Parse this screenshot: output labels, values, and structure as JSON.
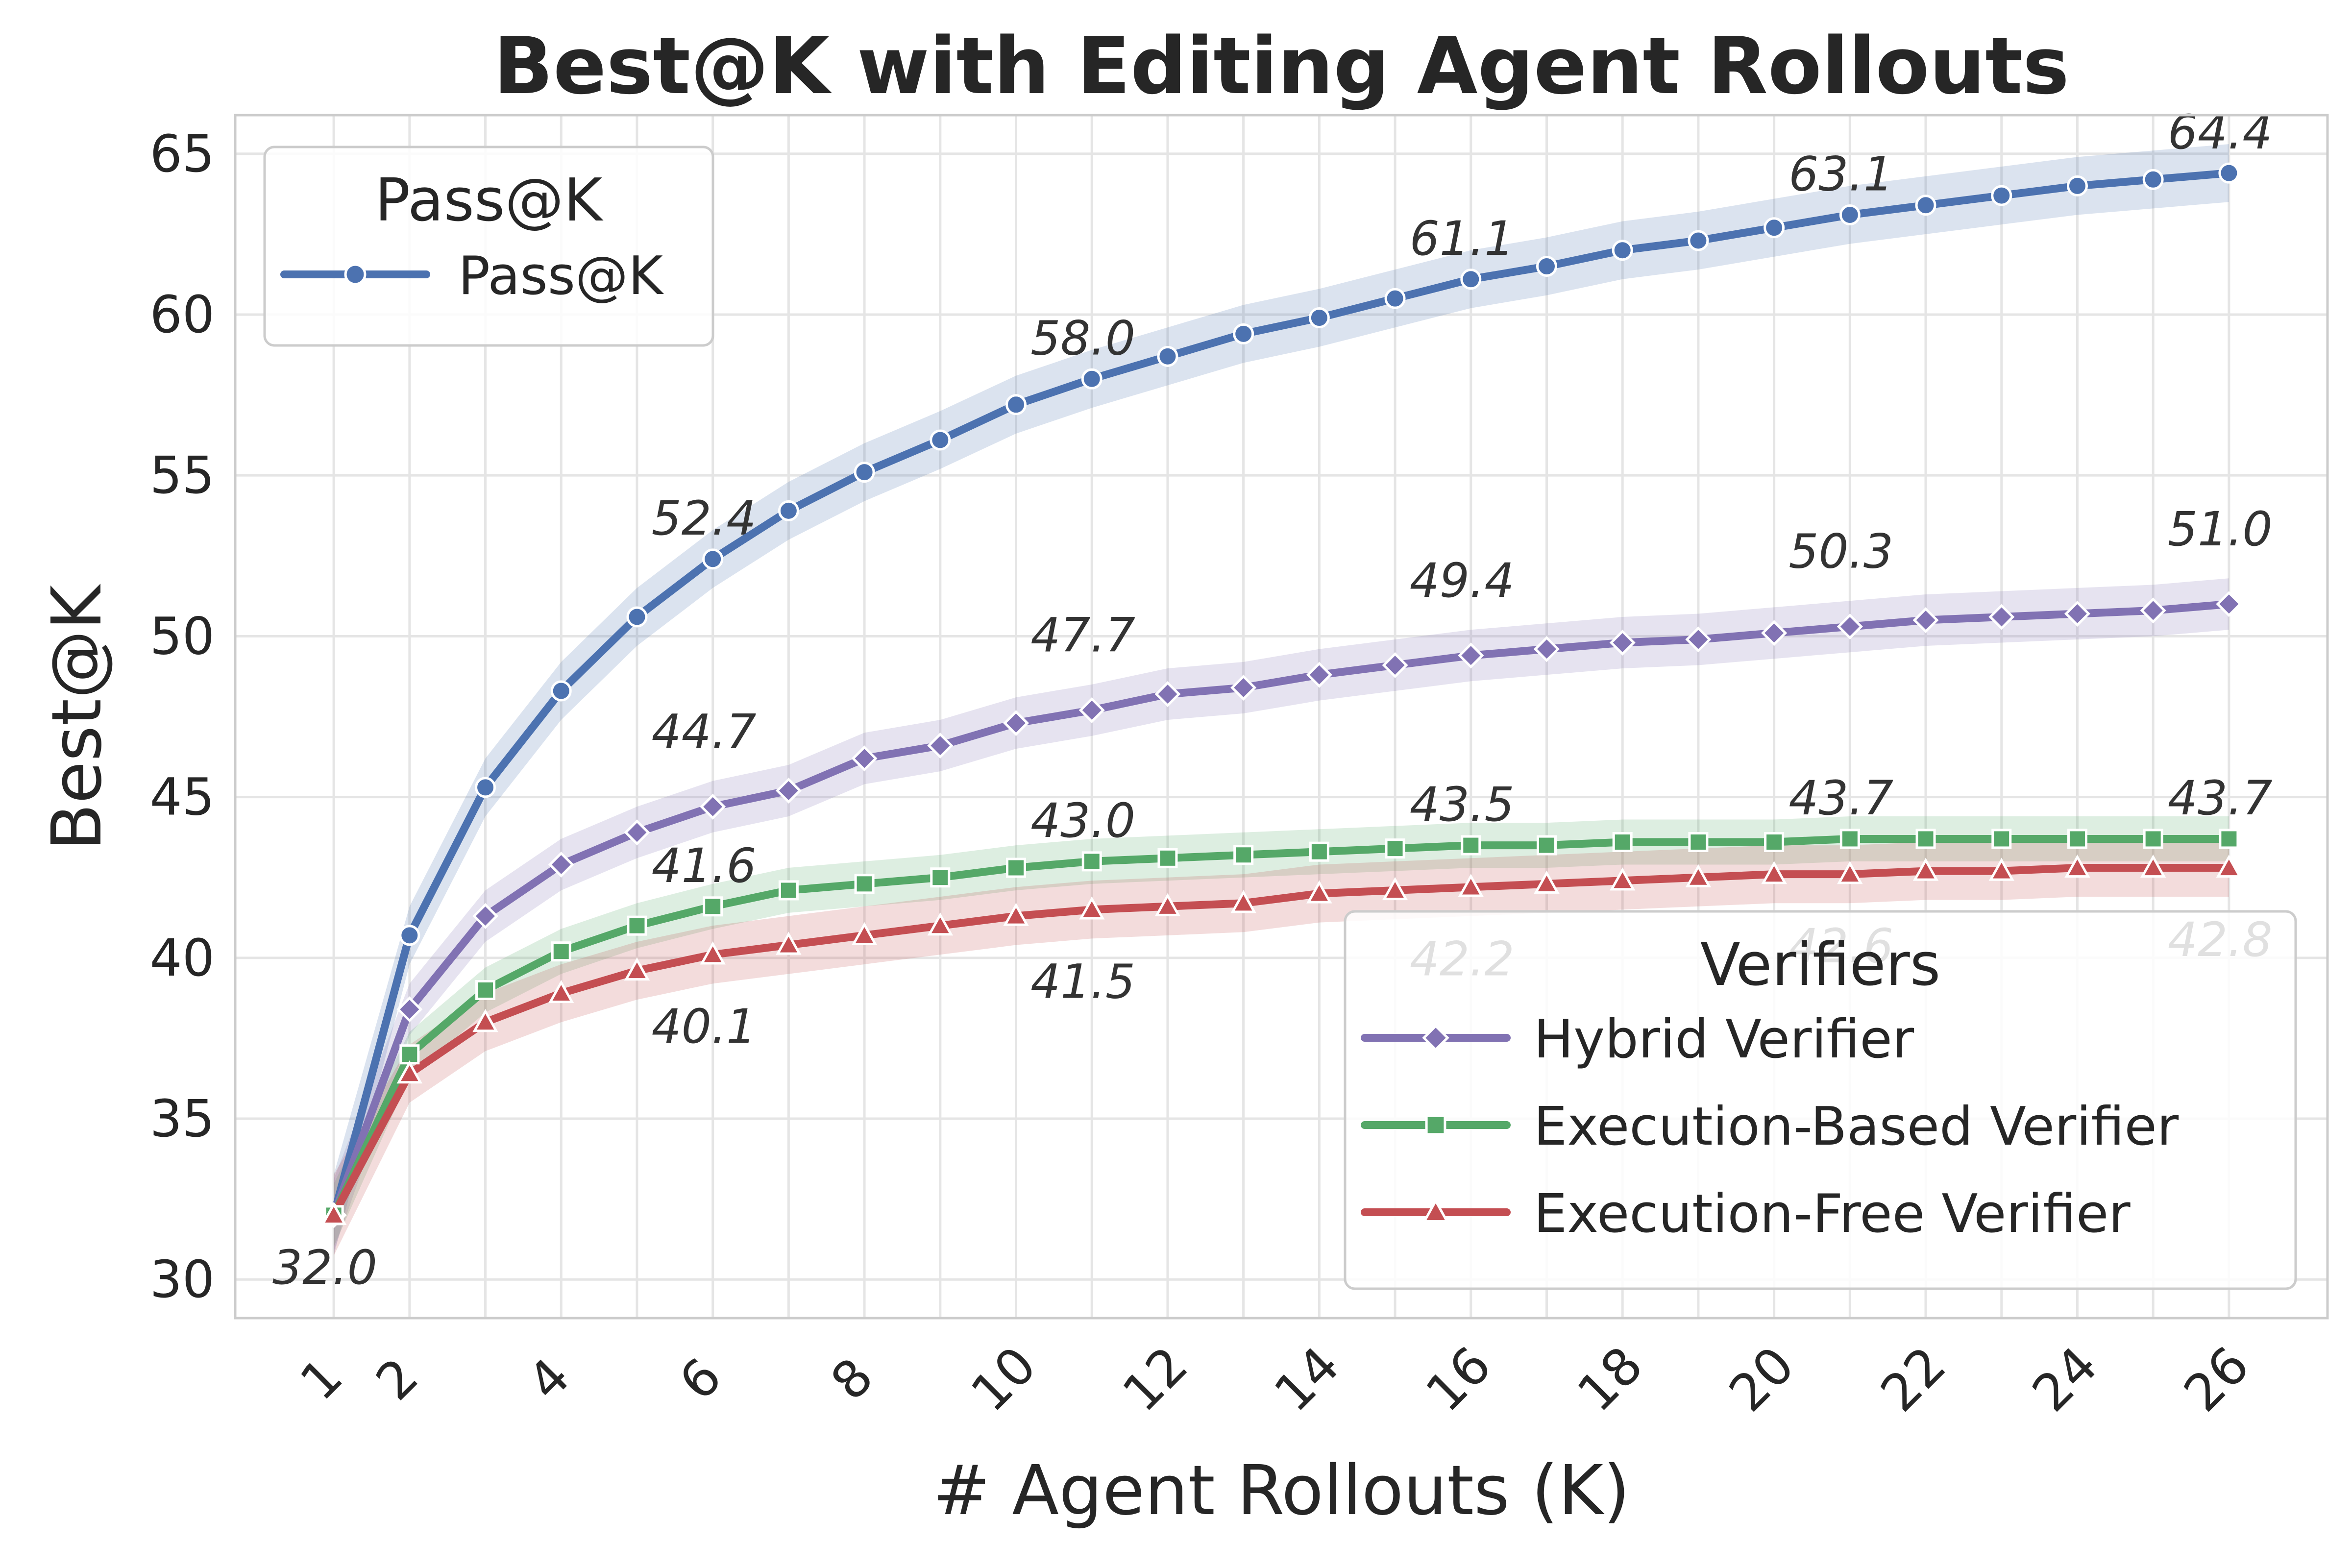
{
  "chart_data": {
    "type": "line",
    "title": "Best@K with Editing Agent Rollouts",
    "xlabel": "# Agent Rollouts (K)",
    "ylabel": "Best@K",
    "xlim": [
      -0.3,
      27.3
    ],
    "ylim": [
      28.8,
      66.2
    ],
    "x_ticks": [
      1,
      2,
      4,
      6,
      8,
      10,
      12,
      14,
      16,
      18,
      20,
      22,
      24,
      26
    ],
    "y_ticks": [
      30,
      35,
      40,
      45,
      50,
      55,
      60,
      65
    ],
    "grid": true,
    "x": [
      1,
      2,
      3,
      4,
      5,
      6,
      7,
      8,
      9,
      10,
      11,
      12,
      13,
      14,
      15,
      16,
      17,
      18,
      19,
      20,
      21,
      22,
      23,
      24,
      25,
      26
    ],
    "series": [
      {
        "name": "Pass@K",
        "color": "#4c72b0",
        "marker": "circle",
        "values": [
          32.0,
          40.7,
          45.3,
          48.3,
          50.6,
          52.4,
          53.9,
          55.1,
          56.1,
          57.2,
          58.0,
          58.7,
          59.4,
          59.9,
          60.5,
          61.1,
          61.5,
          62.0,
          62.3,
          62.7,
          63.1,
          63.4,
          63.7,
          64.0,
          64.2,
          64.4
        ],
        "band": 0.9
      },
      {
        "name": "Hybrid Verifier",
        "color": "#8172b3",
        "marker": "diamond",
        "values": [
          32.0,
          38.4,
          41.3,
          42.9,
          43.9,
          44.7,
          45.2,
          46.2,
          46.6,
          47.3,
          47.7,
          48.2,
          48.4,
          48.8,
          49.1,
          49.4,
          49.6,
          49.8,
          49.9,
          50.1,
          50.3,
          50.5,
          50.6,
          50.7,
          50.8,
          51.0
        ],
        "band": 0.8
      },
      {
        "name": "Execution-Based Verifier",
        "color": "#55a868",
        "marker": "square",
        "values": [
          32.0,
          37.0,
          39.0,
          40.2,
          41.0,
          41.6,
          42.1,
          42.3,
          42.5,
          42.8,
          43.0,
          43.1,
          43.2,
          43.3,
          43.4,
          43.5,
          43.5,
          43.6,
          43.6,
          43.6,
          43.7,
          43.7,
          43.7,
          43.7,
          43.7,
          43.7
        ],
        "band": 0.7
      },
      {
        "name": "Execution-Free Verifier",
        "color": "#c44e52",
        "marker": "triangle",
        "values": [
          32.0,
          36.4,
          38.0,
          38.9,
          39.6,
          40.1,
          40.4,
          40.7,
          41.0,
          41.3,
          41.5,
          41.6,
          41.7,
          42.0,
          42.1,
          42.2,
          42.3,
          42.4,
          42.5,
          42.6,
          42.6,
          42.7,
          42.7,
          42.8,
          42.8,
          42.8
        ],
        "band": 0.9
      }
    ],
    "annotations": [
      {
        "text": "32.0",
        "x": 1,
        "y": 32.0,
        "series": "Pass@K"
      },
      {
        "text": "52.4",
        "x": 6,
        "y": 52.4,
        "series": "Pass@K"
      },
      {
        "text": "58.0",
        "x": 11,
        "y": 58.0,
        "series": "Pass@K"
      },
      {
        "text": "61.1",
        "x": 16,
        "y": 61.1,
        "series": "Pass@K"
      },
      {
        "text": "63.1",
        "x": 21,
        "y": 63.1,
        "series": "Pass@K"
      },
      {
        "text": "64.4",
        "x": 26,
        "y": 64.4,
        "series": "Pass@K"
      },
      {
        "text": "44.7",
        "x": 6,
        "y": 44.7,
        "series": "Hybrid Verifier"
      },
      {
        "text": "47.7",
        "x": 11,
        "y": 47.7,
        "series": "Hybrid Verifier"
      },
      {
        "text": "49.4",
        "x": 16,
        "y": 49.4,
        "series": "Hybrid Verifier"
      },
      {
        "text": "50.3",
        "x": 21,
        "y": 50.3,
        "series": "Hybrid Verifier"
      },
      {
        "text": "51.0",
        "x": 26,
        "y": 51.0,
        "series": "Hybrid Verifier"
      },
      {
        "text": "41.6",
        "x": 6,
        "y": 41.6,
        "series": "Execution-Based Verifier"
      },
      {
        "text": "43.0",
        "x": 11,
        "y": 43.0,
        "series": "Execution-Based Verifier"
      },
      {
        "text": "43.5",
        "x": 16,
        "y": 43.5,
        "series": "Execution-Based Verifier"
      },
      {
        "text": "43.7",
        "x": 21,
        "y": 43.7,
        "series": "Execution-Based Verifier"
      },
      {
        "text": "43.7",
        "x": 26,
        "y": 43.7,
        "series": "Execution-Based Verifier"
      },
      {
        "text": "40.1",
        "x": 6,
        "y": 40.1,
        "series": "Execution-Free Verifier"
      },
      {
        "text": "41.5",
        "x": 11,
        "y": 41.5,
        "series": "Execution-Free Verifier"
      },
      {
        "text": "42.2",
        "x": 16,
        "y": 42.2,
        "series": "Execution-Free Verifier"
      },
      {
        "text": "42.6",
        "x": 21,
        "y": 42.6,
        "series": "Execution-Free Verifier"
      },
      {
        "text": "42.8",
        "x": 26,
        "y": 42.8,
        "series": "Execution-Free Verifier"
      }
    ],
    "legends": [
      {
        "title": "Pass@K",
        "placement": "upper-left",
        "entries": [
          "Pass@K"
        ]
      },
      {
        "title": "Verifiers",
        "placement": "lower-right",
        "entries": [
          "Hybrid Verifier",
          "Execution-Based Verifier",
          "Execution-Free Verifier"
        ]
      }
    ]
  }
}
